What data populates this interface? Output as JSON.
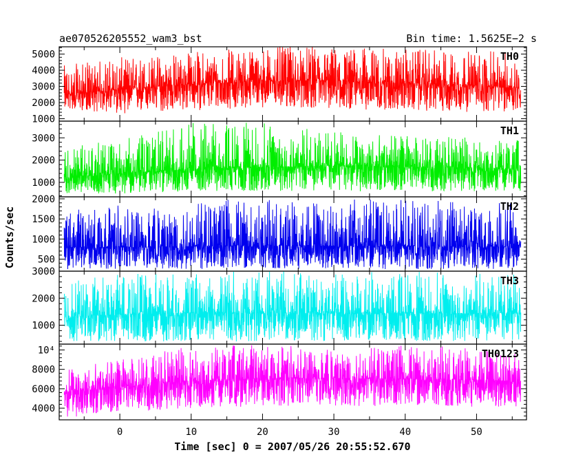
{
  "header": {
    "left_title": "ae070526205552_wam3_bst",
    "right_title": "Bin time: 1.5625E−2 s"
  },
  "chart_data": {
    "type": "line",
    "ylabel": "Counts/sec",
    "xlabel": "Time [sec] 0 = 2007/05/26 20:55:52.670",
    "x_range": [
      -8.5,
      57
    ],
    "x_ticks": [
      0,
      10,
      20,
      30,
      40,
      50
    ],
    "x_tick_labels": [
      "0",
      "10",
      "20",
      "30",
      "40",
      "50"
    ],
    "x_data_range": [
      -7.8,
      56.2
    ],
    "panels": [
      {
        "name": "TH0",
        "color": "#ff0000",
        "ylim": [
          850,
          5450
        ],
        "y_ticks": [
          1000,
          2000,
          3000,
          4000,
          5000
        ],
        "y_tick_labels": [
          "1000",
          "2000",
          "3000",
          "4000",
          "5000"
        ],
        "trend_x": [
          -8,
          0,
          10,
          20,
          30,
          40,
          50,
          56
        ],
        "trend_mean": [
          2500,
          2800,
          3150,
          3350,
          3350,
          3200,
          3050,
          2900
        ],
        "min_y": [
          1600,
          1300,
          1500,
          1700,
          1600,
          1500,
          1400,
          1400
        ],
        "max_y": [
          4300,
          4800,
          5200,
          5450,
          5450,
          5300,
          5200,
          5100
        ]
      },
      {
        "name": "TH1",
        "color": "#00ee00",
        "ylim": [
          350,
          3750
        ],
        "y_ticks": [
          1000,
          2000,
          3000
        ],
        "y_tick_labels": [
          "1000",
          "2000",
          "3000"
        ],
        "trend_x": [
          -8,
          0,
          10,
          20,
          30,
          40,
          50,
          56
        ],
        "trend_mean": [
          1200,
          1400,
          1600,
          1700,
          1750,
          1700,
          1650,
          1600
        ],
        "min_y": [
          500,
          500,
          600,
          600,
          600,
          600,
          600,
          600
        ],
        "max_y": [
          2600,
          2900,
          3700,
          3700,
          3300,
          3100,
          3000,
          2900
        ]
      },
      {
        "name": "TH2",
        "color": "#0000ee",
        "ylim": [
          200,
          2050
        ],
        "y_ticks": [
          500,
          1000,
          1500,
          2000
        ],
        "y_tick_labels": [
          "500",
          "1000",
          "1500",
          "2000"
        ],
        "trend_x": [
          -8,
          0,
          10,
          20,
          30,
          40,
          50,
          56
        ],
        "trend_mean": [
          800,
          800,
          820,
          830,
          830,
          820,
          810,
          800
        ],
        "min_y": [
          250,
          250,
          250,
          250,
          250,
          250,
          250,
          250
        ],
        "max_y": [
          1700,
          1900,
          2000,
          2000,
          2000,
          2000,
          1950,
          1900
        ]
      },
      {
        "name": "TH3",
        "color": "#00eeee",
        "ylim": [
          300,
          3000
        ],
        "y_ticks": [
          1000,
          2000,
          3000
        ],
        "y_tick_labels": [
          "1000",
          "2000",
          "3000"
        ],
        "trend_x": [
          -8,
          0,
          10,
          20,
          30,
          40,
          50,
          56
        ],
        "trend_mean": [
          1300,
          1400,
          1450,
          1450,
          1450,
          1450,
          1450,
          1450
        ],
        "min_y": [
          400,
          400,
          400,
          400,
          400,
          400,
          400,
          400
        ],
        "max_y": [
          2600,
          2900,
          3000,
          3000,
          3000,
          3000,
          2950,
          2900
        ]
      },
      {
        "name": "TH0123",
        "color": "#ff00ff",
        "ylim": [
          2800,
          10600
        ],
        "y_ticks": [
          4000,
          6000,
          8000,
          10000
        ],
        "y_tick_labels": [
          "4000",
          "6000",
          "8000",
          "10⁴"
        ],
        "trend_x": [
          -8,
          0,
          10,
          20,
          30,
          40,
          50,
          56
        ],
        "trend_mean": [
          5600,
          6200,
          6800,
          7100,
          7100,
          7000,
          6900,
          6800
        ],
        "min_y": [
          3000,
          3600,
          4000,
          4200,
          4200,
          4200,
          4100,
          4000
        ],
        "max_y": [
          8200,
          9000,
          10400,
          10600,
          10600,
          10500,
          10400,
          10300
        ]
      }
    ]
  }
}
